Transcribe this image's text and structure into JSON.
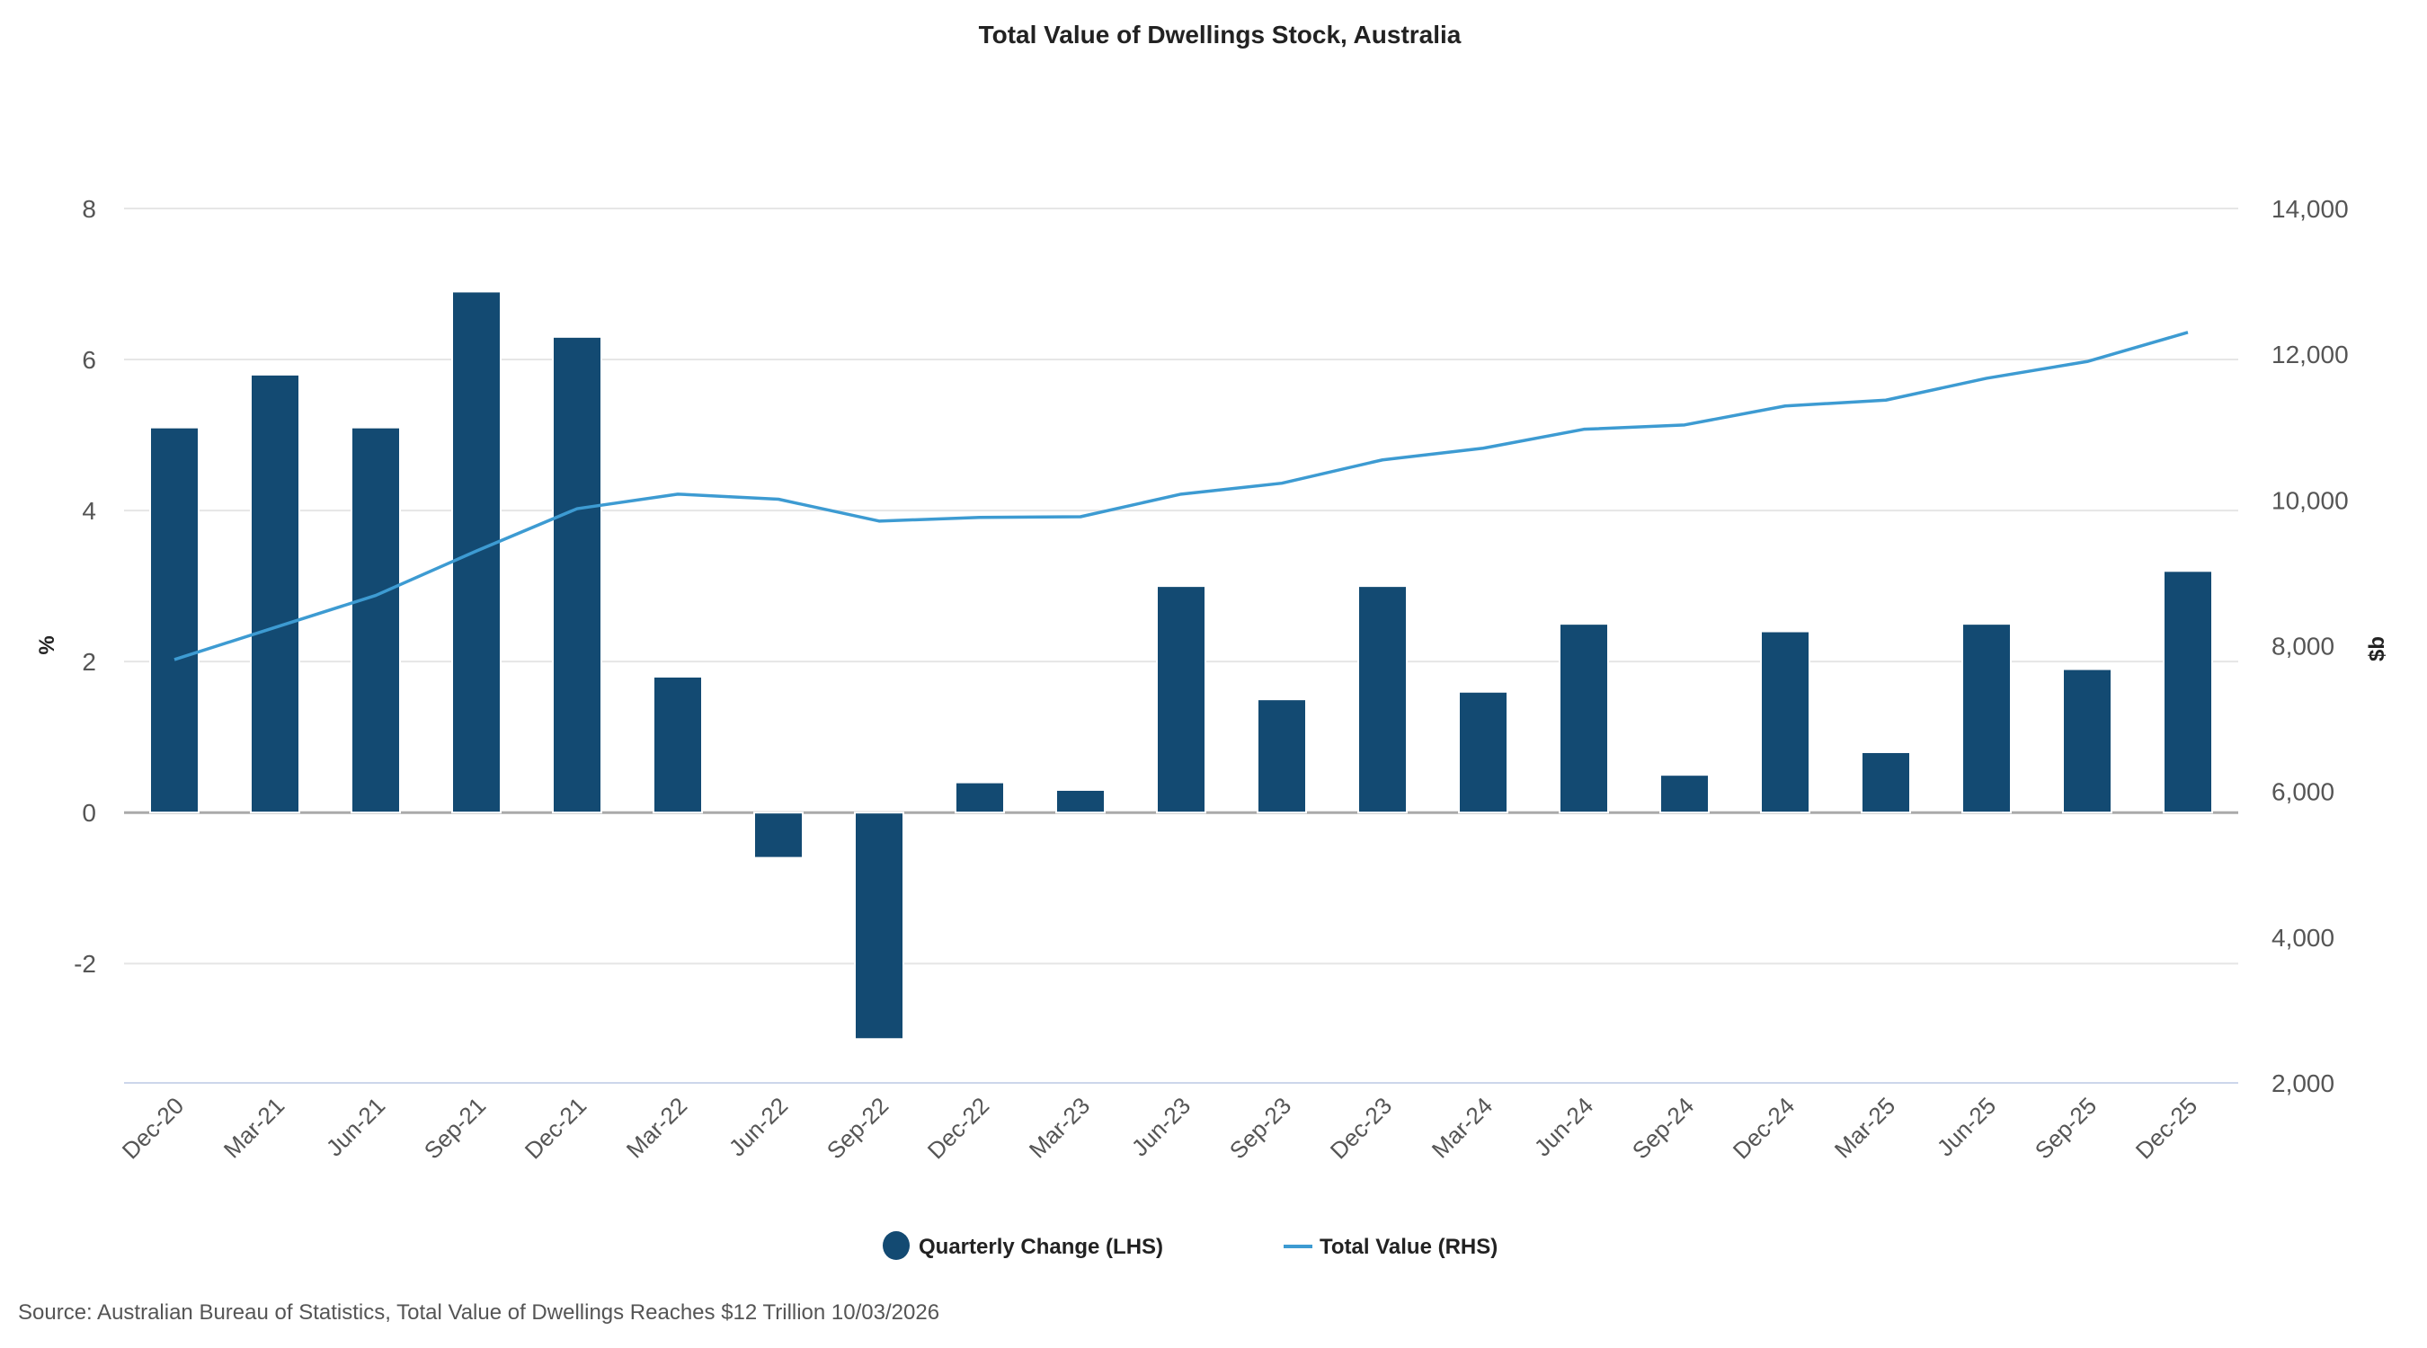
{
  "chart_data": {
    "type": "bar+line",
    "title": "Total Value of Dwellings Stock, Australia",
    "categories": [
      "Dec-20",
      "Mar-21",
      "Jun-21",
      "Sep-21",
      "Dec-21",
      "Mar-22",
      "Jun-22",
      "Sep-22",
      "Dec-22",
      "Mar-23",
      "Jun-23",
      "Sep-23",
      "Dec-23",
      "Mar-24",
      "Jun-24",
      "Sep-24",
      "Dec-24",
      "Mar-25",
      "Jun-25",
      "Sep-25",
      "Dec-25"
    ],
    "series": [
      {
        "name": "Quarterly Change (LHS)",
        "type": "bar",
        "axis": "left",
        "color": "#134a72",
        "values": [
          5.1,
          5.8,
          5.1,
          6.9,
          6.3,
          1.8,
          -0.6,
          -3.0,
          0.4,
          0.3,
          3.0,
          1.5,
          3.0,
          1.6,
          2.5,
          0.5,
          2.4,
          0.8,
          2.5,
          1.9,
          3.2
        ]
      },
      {
        "name": "Total Value (RHS)",
        "type": "line",
        "axis": "right",
        "color": "#3d9bd2",
        "values": [
          7810,
          8250,
          8690,
          9300,
          9880,
          10080,
          10010,
          9710,
          9760,
          9770,
          10080,
          10230,
          10550,
          10710,
          10970,
          11030,
          11290,
          11370,
          11670,
          11900,
          12300
        ]
      }
    ],
    "left_axis": {
      "label": "%",
      "ticks": [
        "8",
        "6",
        "4",
        "2",
        "0",
        "-2"
      ],
      "tick_values": [
        8,
        6,
        4,
        2,
        0,
        -2
      ],
      "ylim": [
        -3.58,
        8
      ]
    },
    "right_axis": {
      "label": "$b",
      "ticks": [
        "14,000",
        "12,000",
        "10,000",
        "8,000",
        "6,000",
        "4,000",
        "2,000"
      ],
      "tick_values": [
        14000,
        12000,
        10000,
        8000,
        6000,
        4000,
        2000
      ],
      "ylim": [
        2000,
        14000
      ]
    },
    "grid": true,
    "legend_position": "bottom"
  },
  "source": "Source: Australian Bureau of Statistics, Total Value of Dwellings Reaches $12 Trillion 10/03/2026"
}
